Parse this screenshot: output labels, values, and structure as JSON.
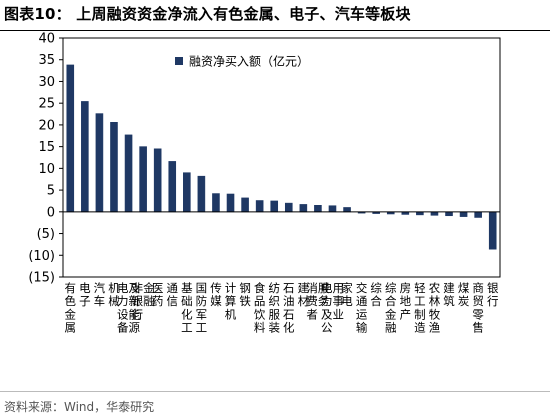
{
  "figure": {
    "title": "图表10： 上周融资资金净流入有色金属、电子、汽车等板块",
    "source": "资料来源：Wind，华泰研究"
  },
  "colors": {
    "bar_fill": "#1f3864",
    "bar_stroke": "#1f3864"
  },
  "chart_data": {
    "type": "bar",
    "title": "",
    "xlabel": "",
    "ylabel": "",
    "ylim": [
      -15,
      40
    ],
    "yticks": [
      40,
      35,
      30,
      25,
      20,
      15,
      10,
      5,
      0,
      -5,
      -10,
      -15
    ],
    "ytick_labels": [
      "40",
      "35",
      "30",
      "25",
      "20",
      "15",
      "10",
      "5",
      "0",
      "(5)",
      "(10)",
      "(15)"
    ],
    "legend": {
      "position": "top-center",
      "entries": [
        "融资净买入额（亿元）"
      ]
    },
    "grid": false,
    "categories": [
      "有色金属",
      "电子",
      "汽车",
      "机械",
      "电力设备及新能源",
      "非银行金融",
      "医药",
      "通信",
      "基础化工",
      "国防军工",
      "传媒",
      "计算机",
      "钢铁",
      "食品饮料",
      "纺织服装",
      "石油石化",
      "建材",
      "消费者服务",
      "电力及公用事业",
      "家电",
      "交通运输",
      "综合",
      "综合金融",
      "房地产",
      "轻工制造",
      "农林牧渔",
      "建筑",
      "煤炭",
      "商贸零售",
      "银行"
    ],
    "series": [
      {
        "name": "融资净买入额（亿元）",
        "values": [
          33.8,
          25.4,
          22.6,
          20.6,
          17.7,
          15.0,
          14.5,
          11.6,
          9.0,
          8.2,
          4.2,
          4.1,
          3.2,
          2.6,
          2.5,
          2.0,
          1.7,
          1.5,
          1.4,
          1.0,
          -0.3,
          -0.4,
          -0.5,
          -0.6,
          -0.7,
          -0.8,
          -0.9,
          -1.1,
          -1.3,
          -8.6
        ]
      }
    ]
  }
}
